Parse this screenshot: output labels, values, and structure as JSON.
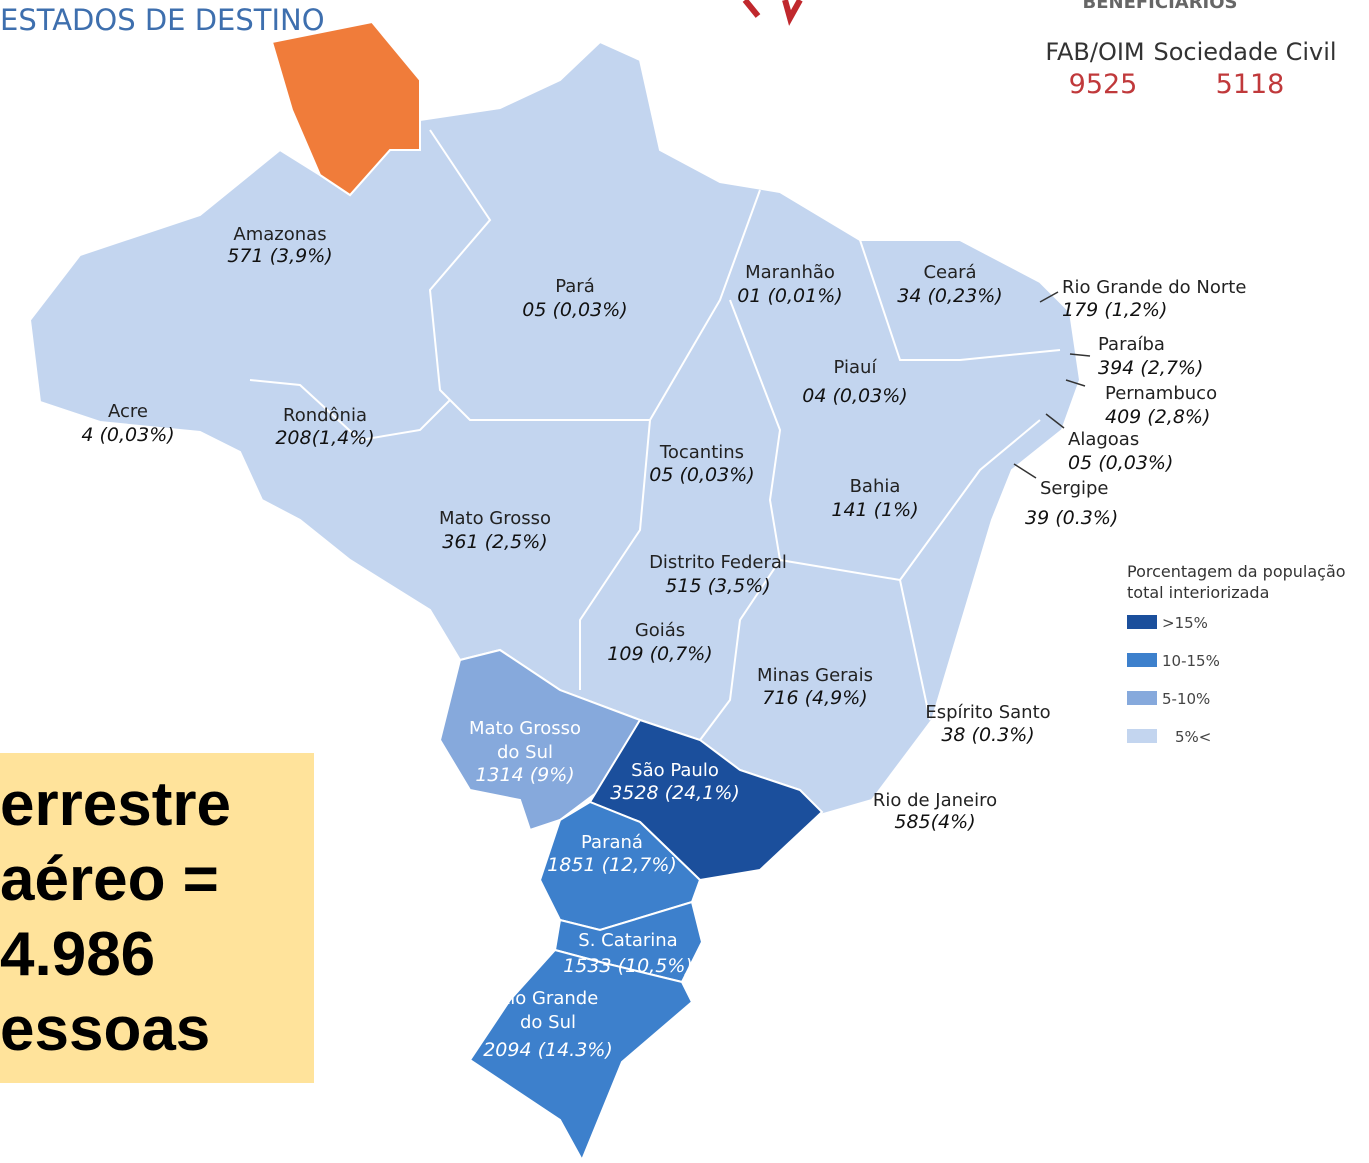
{
  "title": "ESTADOS DE DESTINO",
  "beneficiaries": {
    "title": "BENEFICIÁRIOS",
    "items": [
      {
        "label": "FAB/OIM",
        "value": "9525"
      },
      {
        "label": "Sociedade Civil",
        "value": "5118"
      }
    ]
  },
  "states": [
    {
      "name": "Amazonas",
      "value": "571 (3,9%)"
    },
    {
      "name": "Pará",
      "value": "05 (0,03%)"
    },
    {
      "name": "Maranhão",
      "value": "01 (0,01%)"
    },
    {
      "name": "Ceará",
      "value": "34 (0,23%)"
    },
    {
      "name": "Rio Grande do Norte",
      "value": "179 (1,2%)"
    },
    {
      "name": "Paraíba",
      "value": "394 (2,7%)"
    },
    {
      "name": "Pernambuco",
      "value": "409 (2,8%)"
    },
    {
      "name": "Alagoas",
      "value": "05 (0,03%)"
    },
    {
      "name": "Sergipe",
      "value": "39 (0.3%)"
    },
    {
      "name": "Piauí",
      "value": "04 (0,03%)"
    },
    {
      "name": "Acre",
      "value": "4 (0,03%)"
    },
    {
      "name": "Rondônia",
      "value": "208(1,4%)"
    },
    {
      "name": "Tocantins",
      "value": "05 (0,03%)"
    },
    {
      "name": "Bahia",
      "value": "141 (1%)"
    },
    {
      "name": "Mato Grosso",
      "value": "361 (2,5%)"
    },
    {
      "name": "Distrito Federal",
      "value": "515 (3,5%)"
    },
    {
      "name": "Goiás",
      "value": "109 (0,7%)"
    },
    {
      "name": "Minas Gerais",
      "value": "716 (4,9%)"
    },
    {
      "name": "Espírito Santo",
      "value": "38 (0.3%)"
    },
    {
      "name": [
        "Mato Grosso",
        "do Sul"
      ],
      "value": "1314 (9%)"
    },
    {
      "name": "São Paulo",
      "value": "3528 (24,1%)"
    },
    {
      "name": "Rio de Janeiro",
      "value": "585(4%)"
    },
    {
      "name": "Paraná",
      "value": "1851 (12,7%)"
    },
    {
      "name": "S. Catarina",
      "value": "1533 (10,5%)"
    },
    {
      "name": [
        "Rio Grande",
        "do Sul"
      ],
      "value": "2094 (14.3%)"
    }
  ],
  "legend": {
    "title": [
      "Porcentagem da população",
      "total interiorizada"
    ],
    "items": [
      {
        "label": ">15%",
        "color": "#1b4f9c"
      },
      {
        "label": "10-15%",
        "color": "#3d80cc"
      },
      {
        "label": "5-10%",
        "color": "#86a9dc"
      },
      {
        "label": "5%<",
        "color": "#c3d5ef"
      }
    ]
  },
  "callout": [
    "errestre",
    "aéreo =",
    "4.986",
    "essoas"
  ]
}
